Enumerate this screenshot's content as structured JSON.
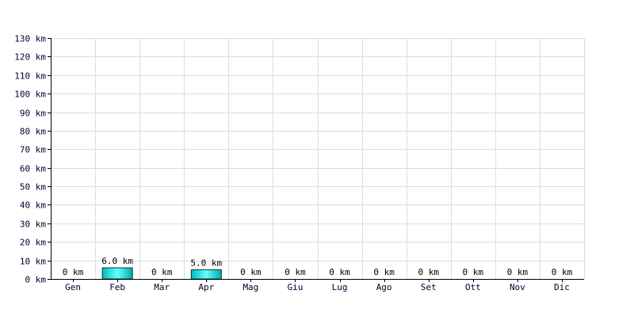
{
  "chart_data": {
    "type": "bar",
    "title": "",
    "xlabel": "",
    "ylabel": "",
    "unit": "km",
    "categories": [
      "Gen",
      "Feb",
      "Mar",
      "Apr",
      "Mag",
      "Giu",
      "Lug",
      "Ago",
      "Set",
      "Ott",
      "Nov",
      "Dic"
    ],
    "values": [
      0,
      6.0,
      0,
      5.0,
      0,
      0,
      0,
      0,
      0,
      0,
      0,
      0
    ],
    "value_labels": [
      "0 km",
      "6.0 km",
      "0 km",
      "5.0 km",
      "0 km",
      "0 km",
      "0 km",
      "0 km",
      "0 km",
      "0 km",
      "0 km",
      "0 km"
    ],
    "ylim": [
      0,
      130
    ],
    "yticks": [
      0,
      10,
      20,
      30,
      40,
      50,
      60,
      70,
      80,
      90,
      100,
      110,
      120,
      130
    ],
    "ytick_labels": [
      "0 km",
      "10 km",
      "20 km",
      "30 km",
      "40 km",
      "50 km",
      "60 km",
      "70 km",
      "80 km",
      "90 km",
      "100 km",
      "110 km",
      "120 km",
      "130 km"
    ],
    "grid": true,
    "legend": "none",
    "colors": {
      "bar_fill": "#00cccc",
      "bar_highlight": "#66ffff",
      "bar_stroke": "#003333",
      "grid": "#dddddd",
      "text": "#000033"
    }
  }
}
